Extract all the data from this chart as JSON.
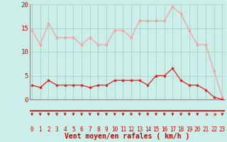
{
  "x": [
    0,
    1,
    2,
    3,
    4,
    5,
    6,
    7,
    8,
    9,
    10,
    11,
    12,
    13,
    14,
    15,
    16,
    17,
    18,
    19,
    20,
    21,
    22,
    23
  ],
  "wind_avg": [
    3,
    2.5,
    4,
    3,
    3,
    3,
    3,
    2.5,
    3,
    3,
    4,
    4,
    4,
    4,
    3,
    5,
    5,
    6.5,
    4,
    3,
    3,
    2,
    0.5,
    0
  ],
  "wind_gust": [
    14.5,
    11.5,
    16,
    13,
    13,
    13,
    11.5,
    13,
    11.5,
    11.5,
    14.5,
    14.5,
    13,
    16.5,
    16.5,
    16.5,
    16.5,
    19.5,
    18,
    14.5,
    11.5,
    11.5,
    6,
    0.5
  ],
  "bg_color": "#cceee8",
  "grid_color": "#aad4cc",
  "line_color_gust": "#f0a0a0",
  "line_color_avg": "#dd2222",
  "marker_size": 2,
  "xlabel": "Vent moyen/en rafales ( km/h )",
  "ylim": [
    0,
    20
  ],
  "yticks": [
    0,
    5,
    10,
    15,
    20
  ],
  "xlim": [
    0,
    23
  ],
  "tick_color": "#cc0000",
  "arrow_color": "#cc0000",
  "spine_color": "#888888"
}
